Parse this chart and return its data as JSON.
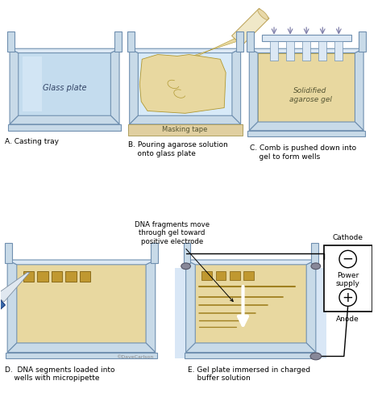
{
  "bg_color": "#ffffff",
  "tray_wall_color": "#a0b8d0",
  "tray_wall_dark": "#7090b0",
  "tray_wall_light": "#c8dae8",
  "tray_inner_top": "#dce8f4",
  "gel_color": "#e8d8a0",
  "gel_edge": "#b09830",
  "glass_color": "#b8d4e8",
  "glass_light": "#d8eaf8",
  "tape_color": "#e0cfa0",
  "tape_edge": "#b0a060",
  "buffer_color": "#c0d8f0",
  "well_color": "#c09830",
  "dna_band_color": "#a08020",
  "arrow_color": "#8080aa",
  "text_glass": "Glass plate",
  "text_masking": "Masking tape",
  "text_solidified": "Solidified\nagarose gel",
  "text_cathode": "Cathode",
  "text_anode": "Anode",
  "text_power": "Power\nsupply",
  "text_dna": "DNA fragments move\nthrough gel toward\npositive electrode",
  "text_copyright": "©DaveCarlson",
  "label_A": "A. Casting tray",
  "label_B": "B. Pouring agarose solution\n    onto glass plate",
  "label_C": "C. Comb is pushed down into\n    gel to form wells",
  "label_D": "D.  DNA segments loaded into\n    wells with micropipette",
  "label_E": "E. Gel plate immersed in charged\n    buffer solution"
}
